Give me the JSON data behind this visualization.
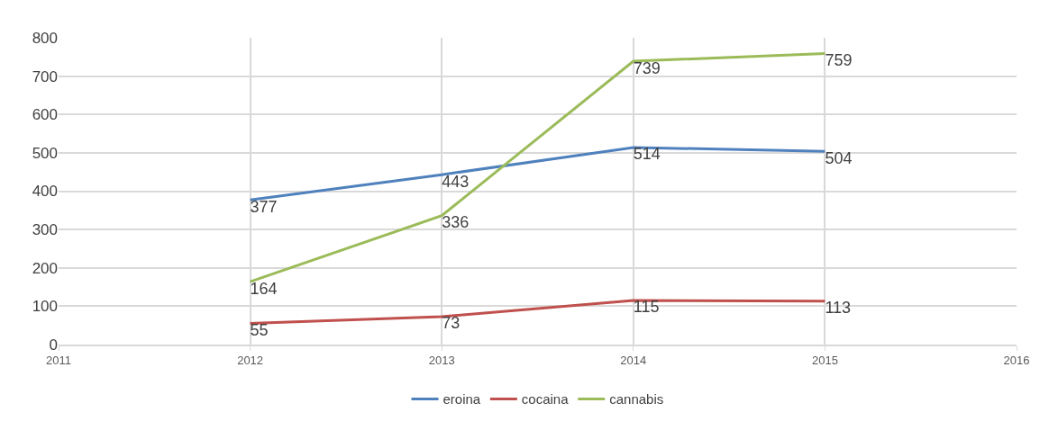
{
  "chart_data": {
    "type": "line",
    "x": [
      2012,
      2013,
      2014,
      2015
    ],
    "series": [
      {
        "name": "eroina",
        "color": "#4f81bd",
        "values": [
          377,
          443,
          514,
          504
        ]
      },
      {
        "name": "cocaina",
        "color": "#c0504d",
        "values": [
          55,
          73,
          115,
          113
        ]
      },
      {
        "name": "cannabis",
        "color": "#9bbb59",
        "values": [
          164,
          336,
          739,
          759
        ]
      }
    ],
    "xlim": [
      2011,
      2016
    ],
    "xticks": [
      2011,
      2012,
      2013,
      2014,
      2015,
      2016
    ],
    "ylim": [
      0,
      800
    ],
    "yticks": [
      0,
      100,
      200,
      300,
      400,
      500,
      600,
      700,
      800
    ],
    "grid": true,
    "legend": "bottom",
    "marker": "none",
    "line_style": "solid",
    "data_labels": true
  }
}
